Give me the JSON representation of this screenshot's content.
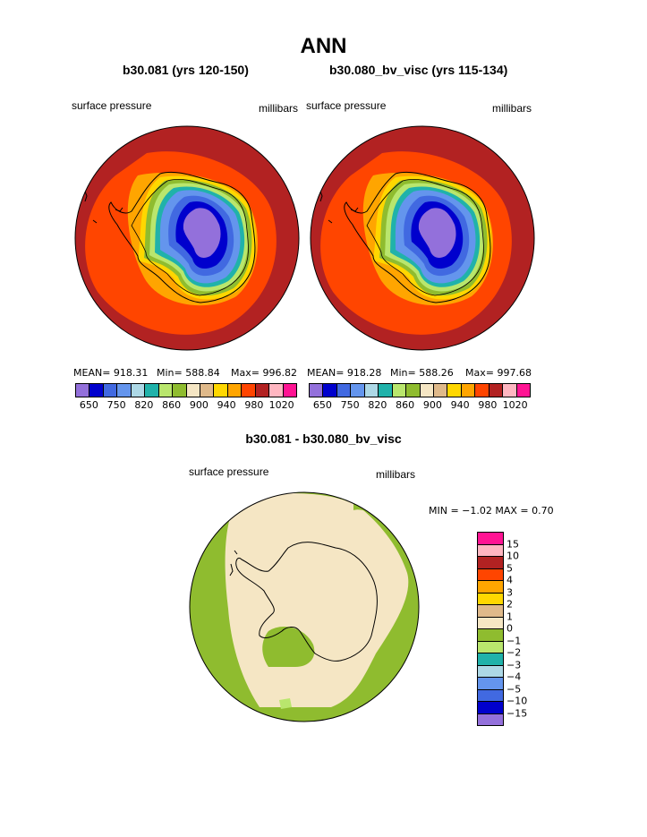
{
  "title": "ANN",
  "panels": [
    {
      "subtitle": "b30.081 (yrs 120-150)",
      "left_label": "surface pressure",
      "right_label": "millibars",
      "stats": {
        "mean": "MEAN= 918.31",
        "min": "Min= 588.84",
        "max": "Max= 996.82"
      }
    },
    {
      "subtitle": "b30.080_bv_visc (yrs 115-134)",
      "left_label": "surface pressure",
      "right_label": "millibars",
      "stats": {
        "mean": "MEAN= 918.28",
        "min": "Min= 588.26",
        "max": "Max= 997.68"
      }
    }
  ],
  "diff": {
    "subtitle": "b30.081 - b30.080_bv_visc",
    "left_label": "surface pressure",
    "right_label": "millibars",
    "minmax": "MIN =  −1.02 MAX =    0.70"
  },
  "chart_data": [
    {
      "type": "contour-map",
      "projection": "south-polar-stereographic",
      "title": "b30.081 (yrs 120-150)",
      "variable": "surface pressure",
      "units": "millibars",
      "mean": 918.31,
      "min": 588.84,
      "max": 996.82,
      "contour_levels": [
        650,
        700,
        750,
        800,
        820,
        840,
        860,
        880,
        900,
        920,
        940,
        960,
        980,
        1000,
        1020
      ],
      "colorbar_tick_labels": [
        "650",
        "750",
        "820",
        "860",
        "900",
        "940",
        "980",
        "1020"
      ]
    },
    {
      "type": "contour-map",
      "projection": "south-polar-stereographic",
      "title": "b30.080_bv_visc (yrs 115-134)",
      "variable": "surface pressure",
      "units": "millibars",
      "mean": 918.28,
      "min": 588.26,
      "max": 997.68,
      "contour_levels": [
        650,
        700,
        750,
        800,
        820,
        840,
        860,
        880,
        900,
        920,
        940,
        960,
        980,
        1000,
        1020
      ],
      "colorbar_tick_labels": [
        "650",
        "750",
        "820",
        "860",
        "900",
        "940",
        "980",
        "1020"
      ]
    },
    {
      "type": "contour-map",
      "projection": "south-polar-stereographic",
      "title": "b30.081 - b30.080_bv_visc",
      "variable": "surface pressure",
      "units": "millibars",
      "min": -1.02,
      "max": 0.7,
      "contour_levels": [
        -15,
        -10,
        -5,
        -4,
        -3,
        -2,
        -1,
        0,
        1,
        2,
        3,
        4,
        5,
        10,
        15
      ],
      "colorbar_tick_labels": [
        "15",
        "10",
        "5",
        "4",
        "3",
        "2",
        "1",
        "0",
        "−1",
        "−2",
        "−3",
        "−4",
        "−5",
        "−10",
        "−15"
      ]
    }
  ],
  "colors": {
    "abs_palette": [
      "#9370db",
      "#0000cd",
      "#4169e1",
      "#6495ed",
      "#add8e6",
      "#20b2aa",
      "#b9e66d",
      "#8fbc2f",
      "#f5e6c4",
      "#dfb98a",
      "#ffd700",
      "#ffa500",
      "#ff4500",
      "#b22222",
      "#ffb6c1",
      "#ff1493"
    ],
    "diff_palette": [
      "#ff1493",
      "#ffb6c1",
      "#b22222",
      "#ff4500",
      "#ffa500",
      "#ffd700",
      "#dfb98a",
      "#f5e6c4",
      "#8fbc2f",
      "#b9e66d",
      "#20b2aa",
      "#add8e6",
      "#6495ed",
      "#4169e1",
      "#0000cd",
      "#9370db"
    ]
  }
}
